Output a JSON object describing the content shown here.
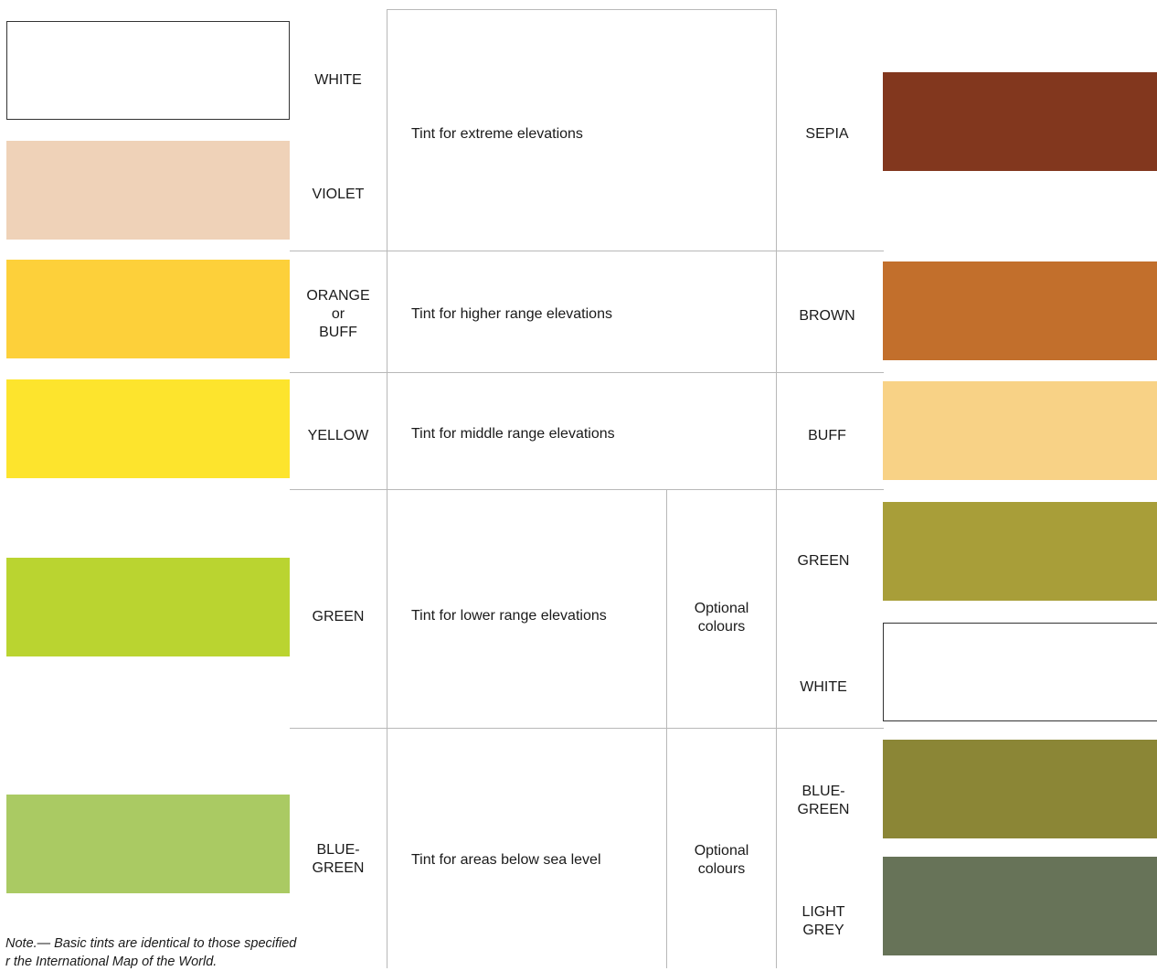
{
  "left_labels": {
    "white": "WHITE",
    "violet": "VIOLET",
    "orange_buff": "ORANGE\nor\nBUFF",
    "yellow": "YELLOW",
    "green": "GREEN",
    "blue_green": "BLUE-\nGREEN"
  },
  "descriptions": {
    "extreme": "Tint for extreme elevations",
    "higher": "Tint for higher range elevations",
    "middle": "Tint for middle range elevations",
    "lower": "Tint for lower range elevations",
    "below_sea": "Tint for areas below sea level"
  },
  "optional": {
    "lower": "Optional\ncolours",
    "below_sea": "Optional\ncolours"
  },
  "right_labels": {
    "sepia": "SEPIA",
    "brown": "BROWN",
    "buff": "BUFF",
    "green": "GREEN",
    "white": "WHITE",
    "blue_green": "BLUE-\nGREEN",
    "light_grey": "LIGHT\nGREY"
  },
  "note": "Note.— Basic tints are identical to those specified\nr the International Map of the World.",
  "colors": {
    "left": {
      "white": "#ffffff",
      "violet": "#efd2b8",
      "orange_buff": "#fdd03a",
      "yellow": "#fde42d",
      "green": "#bad430",
      "blue_green": "#aaca63"
    },
    "right": {
      "sepia": "#82371e",
      "brown": "#c26f2c",
      "buff": "#f8d286",
      "green": "#a89e39",
      "white": "#ffffff",
      "blue_green": "#8b8636",
      "light_grey": "#677358"
    },
    "grid_line": "#b8b8b8"
  }
}
